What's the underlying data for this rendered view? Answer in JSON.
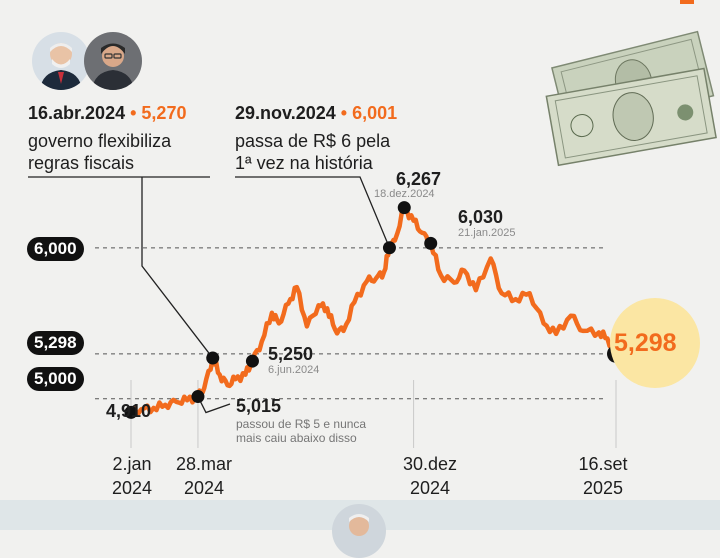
{
  "chart_data": {
    "type": "line",
    "title": "",
    "xlabel": "",
    "ylabel": "",
    "ylim": [
      4.78,
      6.45
    ],
    "reference_lines": [
      6.0,
      5.298,
      5.0
    ],
    "x_ticks": [
      {
        "date": "2024-01-02",
        "label1": "2.jan",
        "label2": "2024"
      },
      {
        "date": "2024-03-28",
        "label1": "28.mar",
        "label2": "2024"
      },
      {
        "date": "2024-12-30",
        "label1": "30.dez",
        "label2": "2024"
      },
      {
        "date": "2025-09-16",
        "label1": "16.set",
        "label2": "2025"
      }
    ],
    "y_labels": [
      "6,000",
      "5,298",
      "5,000"
    ],
    "series": [
      {
        "values": [
          [
            "2024-01-02",
            4.91
          ],
          [
            "2024-01-15",
            4.93
          ],
          [
            "2024-01-31",
            4.94
          ],
          [
            "2024-02-15",
            4.96
          ],
          [
            "2024-02-29",
            4.98
          ],
          [
            "2024-03-14",
            4.99
          ],
          [
            "2024-03-28",
            5.015
          ],
          [
            "2024-04-05",
            5.07
          ],
          [
            "2024-04-16",
            5.27
          ],
          [
            "2024-04-25",
            5.16
          ],
          [
            "2024-05-05",
            5.09
          ],
          [
            "2024-05-15",
            5.13
          ],
          [
            "2024-05-28",
            5.16
          ],
          [
            "2024-06-06",
            5.25
          ],
          [
            "2024-06-18",
            5.38
          ],
          [
            "2024-07-01",
            5.57
          ],
          [
            "2024-07-10",
            5.5
          ],
          [
            "2024-07-22",
            5.63
          ],
          [
            "2024-08-02",
            5.74
          ],
          [
            "2024-08-15",
            5.48
          ],
          [
            "2024-08-30",
            5.62
          ],
          [
            "2024-09-10",
            5.6
          ],
          [
            "2024-09-20",
            5.46
          ],
          [
            "2024-10-01",
            5.45
          ],
          [
            "2024-10-15",
            5.64
          ],
          [
            "2024-10-31",
            5.78
          ],
          [
            "2024-11-12",
            5.8
          ],
          [
            "2024-11-22",
            5.84
          ],
          [
            "2024-11-29",
            6.001
          ],
          [
            "2024-12-06",
            6.05
          ],
          [
            "2024-12-18",
            6.267
          ],
          [
            "2024-12-30",
            6.18
          ],
          [
            "2025-01-10",
            6.1
          ],
          [
            "2025-01-21",
            6.03
          ],
          [
            "2025-02-03",
            5.82
          ],
          [
            "2025-02-20",
            5.77
          ],
          [
            "2025-03-05",
            5.85
          ],
          [
            "2025-03-20",
            5.72
          ],
          [
            "2025-04-08",
            5.93
          ],
          [
            "2025-04-22",
            5.7
          ],
          [
            "2025-05-10",
            5.66
          ],
          [
            "2025-05-28",
            5.7
          ],
          [
            "2025-06-15",
            5.5
          ],
          [
            "2025-07-01",
            5.43
          ],
          [
            "2025-07-20",
            5.55
          ],
          [
            "2025-08-05",
            5.45
          ],
          [
            "2025-08-25",
            5.44
          ],
          [
            "2025-09-05",
            5.4
          ],
          [
            "2025-09-16",
            5.298
          ]
        ]
      }
    ],
    "points": [
      {
        "date": "2024-01-02",
        "value": 4.91,
        "label": "4,910"
      },
      {
        "date": "2024-03-28",
        "value": 5.015,
        "label": "5,015"
      },
      {
        "date": "2024-04-16",
        "value": 5.27
      },
      {
        "date": "2024-06-06",
        "value": 5.25,
        "label": "5,250",
        "date_label": "6.jun.2024"
      },
      {
        "date": "2024-11-29",
        "value": 6.001
      },
      {
        "date": "2024-12-18",
        "value": 6.267,
        "label": "6,267",
        "date_label": "18.dez.2024"
      },
      {
        "date": "2025-01-21",
        "value": 6.03,
        "label": "6,030",
        "date_label": "21.jan.2025"
      },
      {
        "date": "2025-09-16",
        "value": 5.298
      }
    ],
    "colors": {
      "line": "#f26b1d",
      "point": "#111111",
      "final_highlight": "#fbe6a3"
    }
  },
  "annotations": {
    "a1": {
      "date": "16.abr.2024",
      "value": "5,270",
      "line1": "governo flexibiliza",
      "line2": "regras fiscais"
    },
    "a2": {
      "date": "29.nov.2024",
      "value": "6,001",
      "line1": "passa de R$ 6 pela",
      "line2": "1ª vez na história"
    },
    "note_5015": {
      "line1": "passou de R$ 5 e nunca",
      "line2": "mais caiu abaixo disso"
    },
    "final_value": "5,298"
  }
}
